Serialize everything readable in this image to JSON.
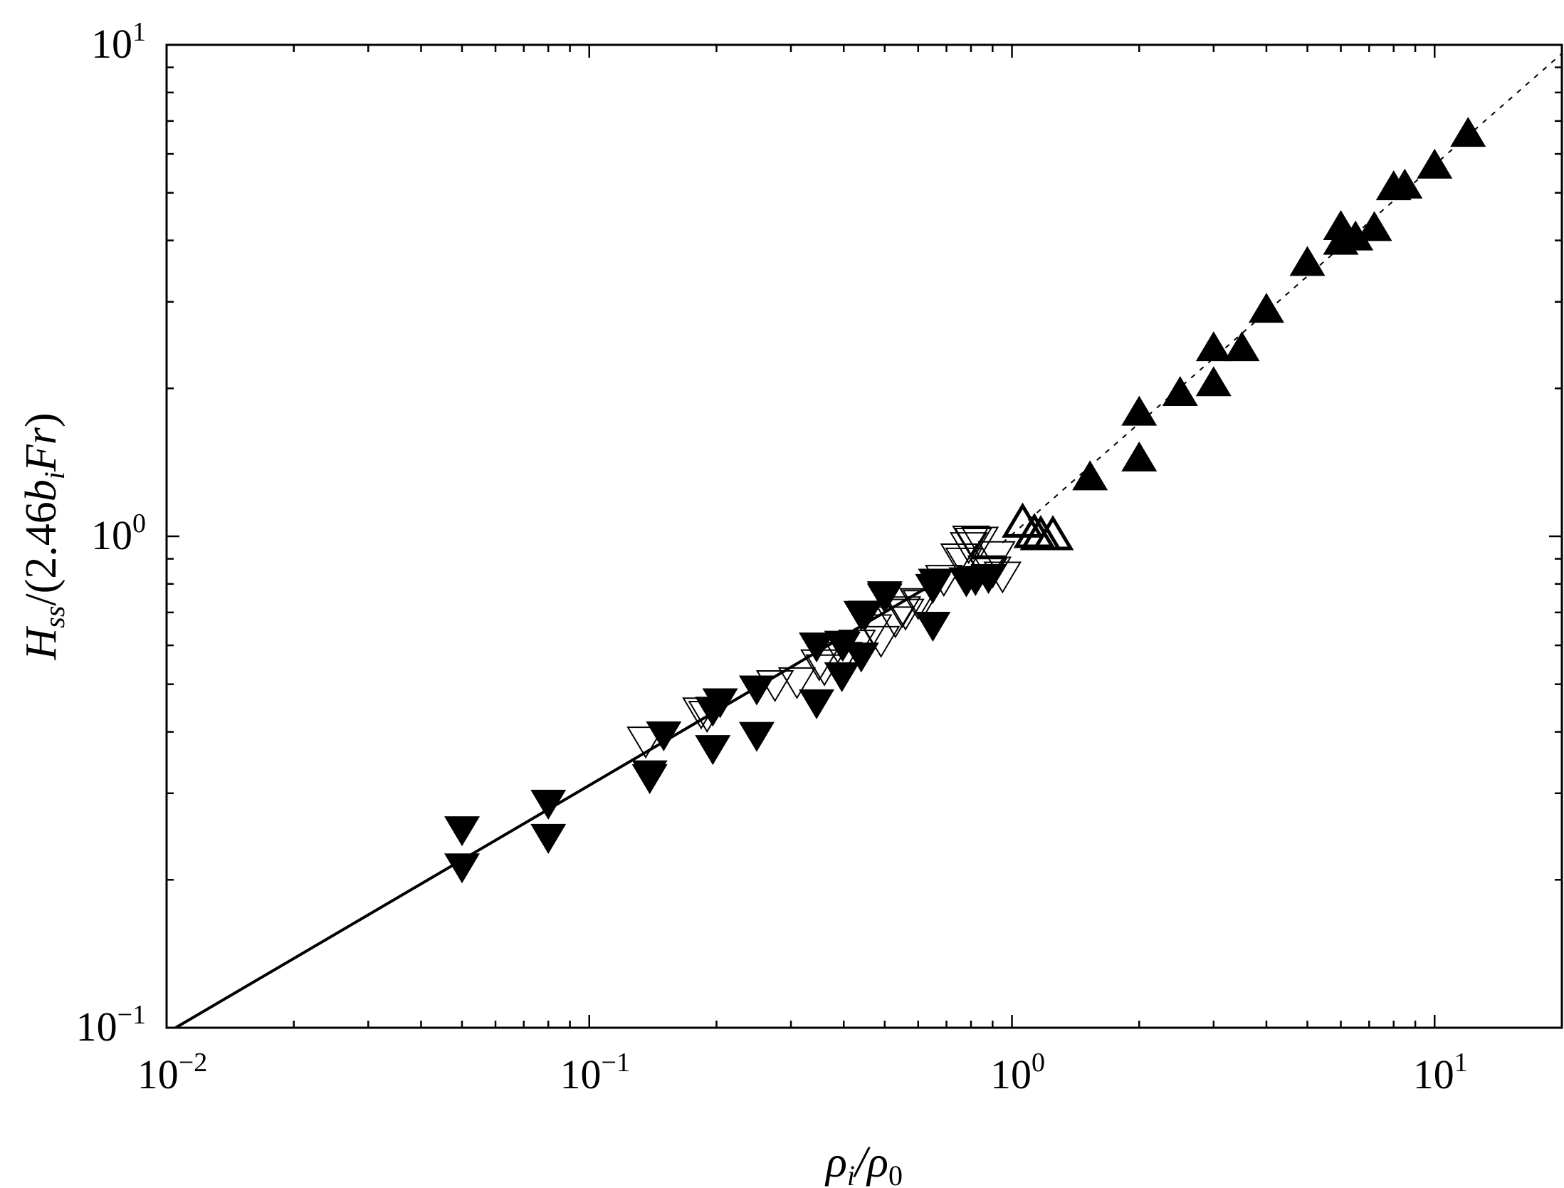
{
  "chart_data": {
    "type": "scatter",
    "title": "",
    "xlabel": "ρi/ρ0",
    "ylabel": "Hss/(2.46biFr)",
    "xscale": "log",
    "yscale": "log",
    "xlim": [
      0.01,
      20
    ],
    "ylim": [
      0.1,
      10
    ],
    "grid": false,
    "legend": null,
    "x_ticks": [
      {
        "base": "10",
        "exp": "−2",
        "value": 0.01
      },
      {
        "base": "10",
        "exp": "−1",
        "value": 0.1
      },
      {
        "base": "10",
        "exp": "0",
        "value": 1
      },
      {
        "base": "10",
        "exp": "1",
        "value": 10
      }
    ],
    "y_ticks": [
      {
        "base": "10",
        "exp": "−1",
        "value": 0.1
      },
      {
        "base": "10",
        "exp": "0",
        "value": 1
      },
      {
        "base": "10",
        "exp": "1",
        "value": 10
      }
    ],
    "series": [
      {
        "name": "filled-down-triangles",
        "marker": "triangle-down-filled",
        "points": [
          [
            0.05,
            0.257
          ],
          [
            0.05,
            0.216
          ],
          [
            0.08,
            0.291
          ],
          [
            0.08,
            0.248
          ],
          [
            0.139,
            0.334
          ],
          [
            0.139,
            0.328
          ],
          [
            0.15,
            0.401
          ],
          [
            0.196,
            0.45
          ],
          [
            0.196,
            0.376
          ],
          [
            0.204,
            0.468
          ],
          [
            0.249,
            0.497
          ],
          [
            0.249,
            0.4
          ],
          [
            0.345,
            0.608
          ],
          [
            0.345,
            0.466
          ],
          [
            0.396,
            0.613
          ],
          [
            0.396,
            0.529
          ],
          [
            0.398,
            0.61
          ],
          [
            0.45,
            0.706
          ],
          [
            0.44,
            0.705
          ],
          [
            0.44,
            0.58
          ],
          [
            0.5,
            0.765
          ],
          [
            0.5,
            0.773
          ],
          [
            0.65,
            0.8
          ],
          [
            0.66,
            0.82
          ],
          [
            0.65,
            0.67
          ],
          [
            0.78,
            0.825
          ],
          [
            0.82,
            0.83
          ],
          [
            0.88,
            0.838
          ]
        ]
      },
      {
        "name": "hollow-down-triangles",
        "marker": "triangle-down-open",
        "points": [
          [
            0.136,
            0.39
          ],
          [
            0.184,
            0.447
          ],
          [
            0.19,
            0.44
          ],
          [
            0.275,
            0.508
          ],
          [
            0.31,
            0.515
          ],
          [
            0.35,
            0.56
          ],
          [
            0.4,
            0.58
          ],
          [
            0.36,
            0.547
          ],
          [
            0.43,
            0.614
          ],
          [
            0.47,
            0.66
          ],
          [
            0.49,
            0.625
          ],
          [
            0.55,
            0.718
          ],
          [
            0.6,
            0.746
          ],
          [
            0.61,
            0.74
          ],
          [
            0.53,
            0.685
          ],
          [
            0.56,
            0.71
          ],
          [
            0.69,
            0.832
          ],
          [
            0.75,
            0.92
          ],
          [
            0.77,
            0.902
          ],
          [
            0.79,
            0.97
          ],
          [
            0.8,
            1.0
          ],
          [
            0.81,
            0.99
          ],
          [
            0.84,
            0.995
          ],
          [
            0.87,
            0.87
          ],
          [
            0.88,
            0.86
          ],
          [
            0.9,
            0.865
          ],
          [
            0.95,
            0.845
          ],
          [
            0.92,
            0.93
          ]
        ]
      },
      {
        "name": "thick-open-up-triangles",
        "marker": "triangle-up-open-thick",
        "points": [
          [
            1.06,
            1.05
          ],
          [
            1.13,
            1.0
          ],
          [
            1.17,
            0.99
          ],
          [
            1.25,
            0.99
          ]
        ]
      },
      {
        "name": "filled-up-triangles",
        "marker": "triangle-up-filled",
        "points": [
          [
            1.53,
            1.3
          ],
          [
            2.0,
            1.42
          ],
          [
            2.0,
            1.76
          ],
          [
            2.5,
            1.93
          ],
          [
            3.0,
            2.02
          ],
          [
            3.0,
            2.38
          ],
          [
            3.5,
            2.38
          ],
          [
            4.0,
            2.85
          ],
          [
            5.0,
            3.55
          ],
          [
            6.0,
            4.2
          ],
          [
            6.0,
            3.92
          ],
          [
            6.5,
            4.0
          ],
          [
            7.2,
            4.18
          ],
          [
            8.0,
            5.06
          ],
          [
            8.5,
            5.1
          ],
          [
            10.0,
            5.6
          ],
          [
            12.0,
            6.5
          ]
        ]
      }
    ],
    "lines": [
      {
        "name": "fit-solid",
        "style": "solid",
        "points": [
          [
            0.0105,
            0.1
          ],
          [
            0.7,
            0.83
          ]
        ]
      },
      {
        "name": "fit-dotted",
        "style": "dotted",
        "points": [
          [
            0.95,
            0.97
          ],
          [
            20,
            9.6
          ]
        ]
      }
    ]
  }
}
